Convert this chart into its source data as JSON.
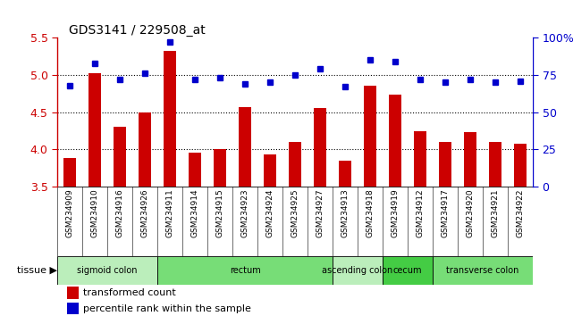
{
  "title": "GDS3141 / 229508_at",
  "samples": [
    "GSM234909",
    "GSM234910",
    "GSM234916",
    "GSM234926",
    "GSM234911",
    "GSM234914",
    "GSM234915",
    "GSM234923",
    "GSM234924",
    "GSM234925",
    "GSM234927",
    "GSM234913",
    "GSM234918",
    "GSM234919",
    "GSM234912",
    "GSM234917",
    "GSM234920",
    "GSM234921",
    "GSM234922"
  ],
  "bar_values": [
    3.88,
    5.02,
    4.3,
    4.5,
    5.33,
    3.95,
    4.0,
    4.57,
    3.93,
    4.1,
    4.56,
    3.85,
    4.86,
    4.74,
    4.24,
    4.1,
    4.23,
    4.1,
    4.07
  ],
  "dot_values": [
    68,
    83,
    72,
    76,
    97,
    72,
    73,
    69,
    70,
    75,
    79,
    67,
    85,
    84,
    72,
    70,
    72,
    70,
    71
  ],
  "ylim": [
    3.5,
    5.5
  ],
  "y2lim": [
    0,
    100
  ],
  "yticks": [
    3.5,
    4.0,
    4.5,
    5.0,
    5.5
  ],
  "y2ticks": [
    0,
    25,
    50,
    75,
    100
  ],
  "y2ticklabels": [
    "0",
    "25",
    "50",
    "75",
    "100%"
  ],
  "bar_color": "#cc0000",
  "dot_color": "#0000cc",
  "tissue_groups": [
    {
      "label": "sigmoid colon",
      "start": 0,
      "end": 4,
      "color": "#bbeebb"
    },
    {
      "label": "rectum",
      "start": 4,
      "end": 11,
      "color": "#77dd77"
    },
    {
      "label": "ascending colon",
      "start": 11,
      "end": 13,
      "color": "#bbeebb"
    },
    {
      "label": "cecum",
      "start": 13,
      "end": 15,
      "color": "#44cc44"
    },
    {
      "label": "transverse colon",
      "start": 15,
      "end": 19,
      "color": "#77dd77"
    }
  ],
  "legend_items": [
    {
      "label": "transformed count",
      "color": "#cc0000"
    },
    {
      "label": "percentile rank within the sample",
      "color": "#0000cc"
    }
  ],
  "bg_color": "#cccccc"
}
